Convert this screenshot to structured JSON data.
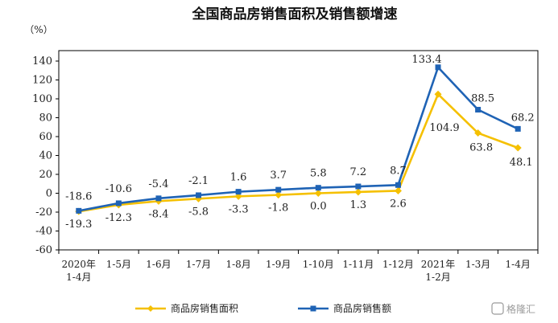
{
  "chart_data": {
    "type": "line",
    "title": "全国商品房销售面积及销售额增速",
    "unit_label": "（%）",
    "ylim": [
      -60,
      140
    ],
    "yticks": [
      "140",
      "120",
      "100",
      "80",
      "60",
      "40",
      "20",
      "0",
      "-20",
      "-40",
      "-60"
    ],
    "categories": [
      "2020年\n1-4月",
      "1-5月",
      "1-6月",
      "1-7月",
      "1-8月",
      "1-9月",
      "1-10月",
      "1-11月",
      "1-12月",
      "2021年\n1-2月",
      "1-3月",
      "1-4月"
    ],
    "series": [
      {
        "name": "商品房销售面积",
        "color": "#f5c000",
        "marker": "diamond",
        "values": [
          -19.3,
          -12.3,
          -8.4,
          -5.8,
          -3.3,
          -1.8,
          0.0,
          1.3,
          2.6,
          104.9,
          63.8,
          48.1
        ],
        "labels": [
          "-19.3",
          "-12.3",
          "-8.4",
          "-5.8",
          "-3.3",
          "-1.8",
          "0.0",
          "1.3",
          "2.6",
          "104.9",
          "63.8",
          "48.1"
        ]
      },
      {
        "name": "商品房销售额",
        "color": "#1f63b5",
        "marker": "square",
        "values": [
          -18.6,
          -10.6,
          -5.4,
          -2.1,
          1.6,
          3.7,
          5.8,
          7.2,
          8.7,
          133.4,
          88.5,
          68.2
        ],
        "labels": [
          "-18.6",
          "-10.6",
          "-5.4",
          "-2.1",
          "1.6",
          "3.7",
          "5.8",
          "7.2",
          "8.7",
          "133.4",
          "88.5",
          "68.2"
        ]
      }
    ],
    "legend_position": "bottom",
    "grid": false
  },
  "watermark": "格隆汇"
}
